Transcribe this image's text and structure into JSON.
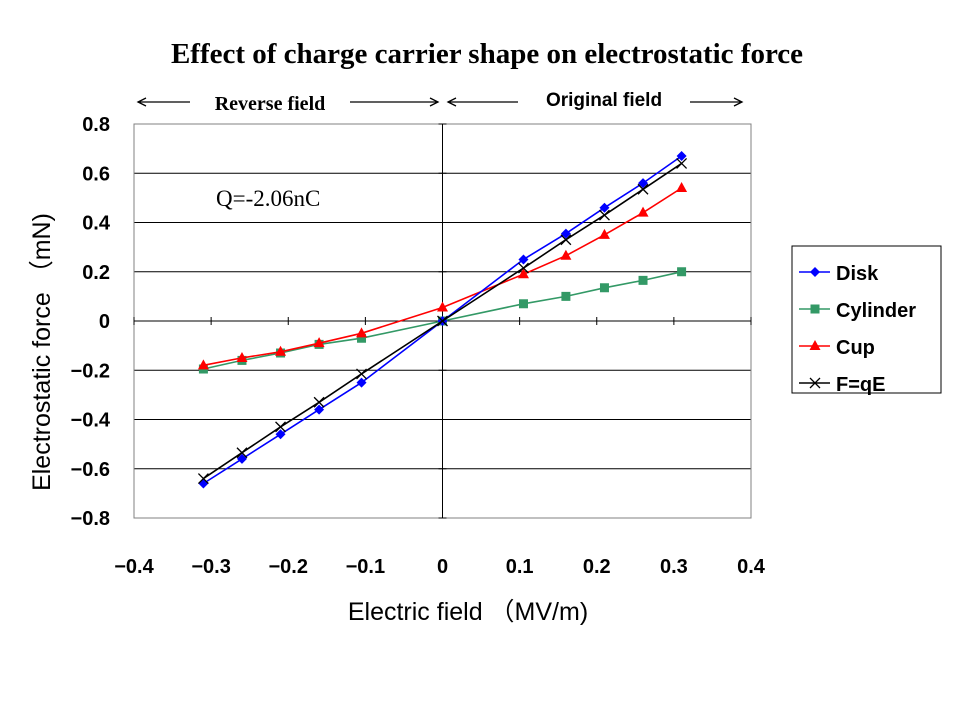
{
  "chart_data": {
    "type": "line",
    "title": "Effect of charge carrier shape on electrostatic force",
    "xlabel": "Electric field （MV/m)",
    "ylabel": "Electrostatic force （mN)",
    "xlim": [
      -0.4,
      0.4
    ],
    "ylim": [
      -0.8,
      0.8
    ],
    "x_ticks": [
      "−0.4",
      "−0.3",
      "−0.2",
      "−0.1",
      "0",
      "0.1",
      "0.2",
      "0.3",
      "0.4"
    ],
    "x_tick_values": [
      -0.4,
      -0.3,
      -0.2,
      -0.1,
      0,
      0.1,
      0.2,
      0.3,
      0.4
    ],
    "y_ticks": [
      "0.8",
      "0.6",
      "0.4",
      "0.2",
      "0",
      "−0.2",
      "−0.4",
      "−0.6",
      "−0.8"
    ],
    "y_tick_values": [
      0.8,
      0.6,
      0.4,
      0.2,
      0,
      -0.2,
      -0.4,
      -0.6,
      -0.8
    ],
    "grid": "horizontal",
    "legend_position": "right",
    "annotations": {
      "reverse_field": "Reverse field",
      "original_field": "Original field",
      "charge": "Q=-2.06nC"
    },
    "series": [
      {
        "name": "Disk",
        "color": "#0000ff",
        "marker": "diamond",
        "points": [
          [
            -0.31,
            -0.66
          ],
          [
            -0.26,
            -0.56
          ],
          [
            -0.21,
            -0.46
          ],
          [
            -0.16,
            -0.36
          ],
          [
            -0.105,
            -0.25
          ],
          [
            0,
            0
          ],
          [
            0.105,
            0.25
          ],
          [
            0.16,
            0.355
          ],
          [
            0.21,
            0.46
          ],
          [
            0.26,
            0.56
          ],
          [
            0.31,
            0.67
          ]
        ]
      },
      {
        "name": "Cylinder",
        "color": "#339966",
        "marker": "square",
        "points": [
          [
            -0.31,
            -0.195
          ],
          [
            -0.26,
            -0.16
          ],
          [
            -0.21,
            -0.13
          ],
          [
            -0.16,
            -0.095
          ],
          [
            -0.105,
            -0.07
          ],
          [
            0,
            0
          ],
          [
            0.105,
            0.07
          ],
          [
            0.16,
            0.1
          ],
          [
            0.21,
            0.135
          ],
          [
            0.26,
            0.165
          ],
          [
            0.31,
            0.2
          ]
        ]
      },
      {
        "name": "Cup",
        "color": "#ff0000",
        "marker": "triangle",
        "points": [
          [
            -0.31,
            -0.18
          ],
          [
            -0.26,
            -0.15
          ],
          [
            -0.21,
            -0.125
          ],
          [
            -0.16,
            -0.09
          ],
          [
            -0.105,
            -0.05
          ],
          [
            0,
            0.055
          ],
          [
            0.105,
            0.19
          ],
          [
            0.16,
            0.265
          ],
          [
            0.21,
            0.35
          ],
          [
            0.26,
            0.44
          ],
          [
            0.31,
            0.54
          ]
        ]
      },
      {
        "name": "F=qE",
        "color": "#000000",
        "marker": "cross",
        "points": [
          [
            -0.31,
            -0.64
          ],
          [
            -0.26,
            -0.535
          ],
          [
            -0.21,
            -0.43
          ],
          [
            -0.16,
            -0.33
          ],
          [
            -0.105,
            -0.215
          ],
          [
            0,
            0
          ],
          [
            0.105,
            0.215
          ],
          [
            0.16,
            0.33
          ],
          [
            0.21,
            0.43
          ],
          [
            0.26,
            0.535
          ],
          [
            0.31,
            0.64
          ]
        ]
      }
    ]
  }
}
